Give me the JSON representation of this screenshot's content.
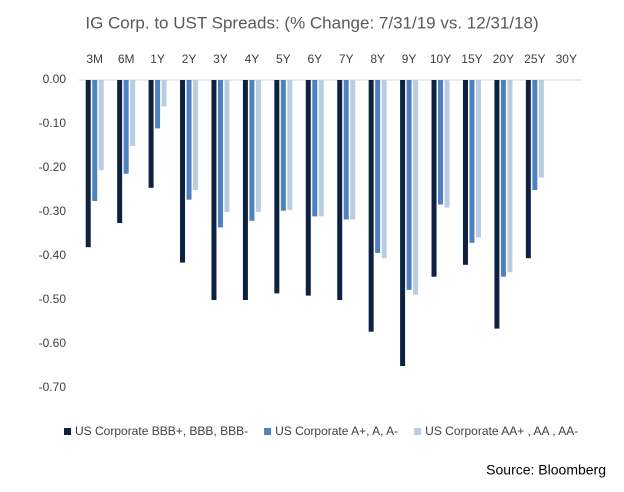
{
  "chart_data": {
    "type": "bar",
    "title": "IG Corp. to UST Spreads: (% Change: 7/31/19 vs. 12/31/18)",
    "categories": [
      "3M",
      "6M",
      "1Y",
      "2Y",
      "3Y",
      "4Y",
      "5Y",
      "6Y",
      "7Y",
      "8Y",
      "9Y",
      "10Y",
      "15Y",
      "20Y",
      "25Y",
      "30Y"
    ],
    "series": [
      {
        "name": "US Corporate BBB+, BBB, BBB-",
        "color": "#0d2240",
        "values": [
          -0.38,
          -0.325,
          -0.245,
          -0.415,
          -0.5,
          -0.5,
          -0.485,
          -0.49,
          -0.5,
          -0.572,
          -0.65,
          -0.447,
          -0.42,
          -0.565,
          -0.405,
          null
        ]
      },
      {
        "name": "US Corporate A+, A, A-",
        "color": "#4f81bd",
        "values": [
          -0.275,
          -0.213,
          -0.11,
          -0.272,
          -0.335,
          -0.32,
          -0.297,
          -0.31,
          -0.317,
          -0.393,
          -0.477,
          -0.283,
          -0.37,
          -0.447,
          -0.25,
          null
        ]
      },
      {
        "name": "US Corporate AA+ , AA , AA-",
        "color": "#b8cce4",
        "values": [
          -0.205,
          -0.15,
          -0.06,
          -0.25,
          -0.3,
          -0.3,
          -0.295,
          -0.31,
          -0.317,
          -0.405,
          -0.488,
          -0.29,
          -0.358,
          -0.437,
          -0.222,
          null
        ]
      }
    ],
    "ylim": [
      -0.7,
      0
    ],
    "yticks": [
      {
        "value": 0,
        "label": "0.00"
      },
      {
        "value": -0.1,
        "label": "-0.10"
      },
      {
        "value": -0.2,
        "label": "-0.20"
      },
      {
        "value": -0.3,
        "label": "-0.30"
      },
      {
        "value": -0.4,
        "label": "-0.40"
      },
      {
        "value": -0.5,
        "label": "-0.50"
      },
      {
        "value": -0.6,
        "label": "-0.60"
      },
      {
        "value": -0.7,
        "label": "-0.70"
      }
    ],
    "grid": false,
    "legend": "bottom",
    "source": "Source: Bloomberg"
  }
}
